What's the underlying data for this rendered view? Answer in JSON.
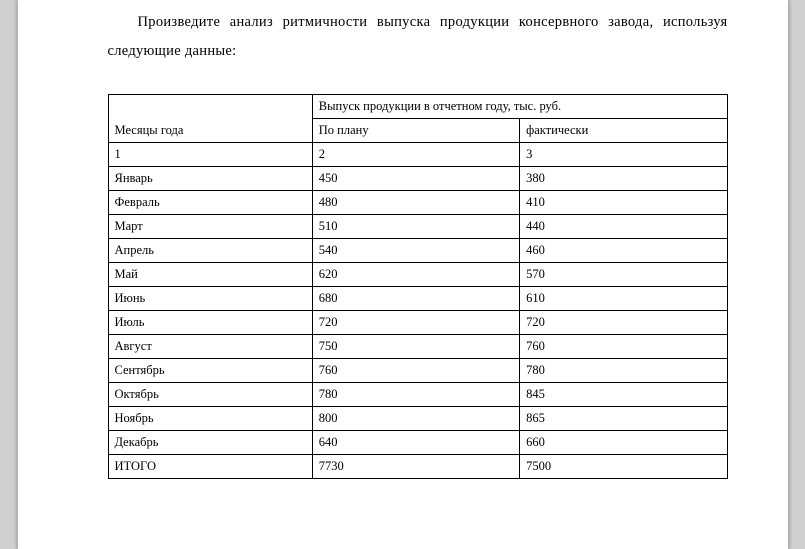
{
  "instruction": {
    "text": "Произведите анализ ритмичности выпуска продукции консервного завода, используя следующие данные:"
  },
  "table": {
    "header": {
      "months_label": "Месяцы года",
      "output_label": "Выпуск продукции в отчетном году, тыс. руб.",
      "plan_label": "По плану",
      "actual_label": "фактически"
    },
    "num_row": {
      "c1": "1",
      "c2": "2",
      "c3": "3"
    },
    "rows": [
      {
        "month": "Январь",
        "plan": "450",
        "actual": "380"
      },
      {
        "month": "Февраль",
        "plan": "480",
        "actual": "410"
      },
      {
        "month": "Март",
        "plan": "510",
        "actual": "440"
      },
      {
        "month": "Апрель",
        "plan": "540",
        "actual": "460"
      },
      {
        "month": "Май",
        "plan": "620",
        "actual": "570"
      },
      {
        "month": "Июнь",
        "plan": "680",
        "actual": "610"
      },
      {
        "month": "Июль",
        "plan": "720",
        "actual": "720"
      },
      {
        "month": "Август",
        "plan": "750",
        "actual": "760"
      },
      {
        "month": "Сентябрь",
        "plan": "760",
        "actual": "780"
      },
      {
        "month": "Октябрь",
        "plan": "780",
        "actual": "845"
      },
      {
        "month": "Ноябрь",
        "plan": "800",
        "actual": "865"
      },
      {
        "month": "Декабрь",
        "plan": "640",
        "actual": "660"
      }
    ],
    "total": {
      "label": "ИТОГО",
      "plan": "7730",
      "actual": "7500"
    }
  },
  "colors": {
    "page_bg": "#ffffff",
    "body_bg": "#d0d0d0",
    "text": "#000000",
    "border": "#000000"
  }
}
